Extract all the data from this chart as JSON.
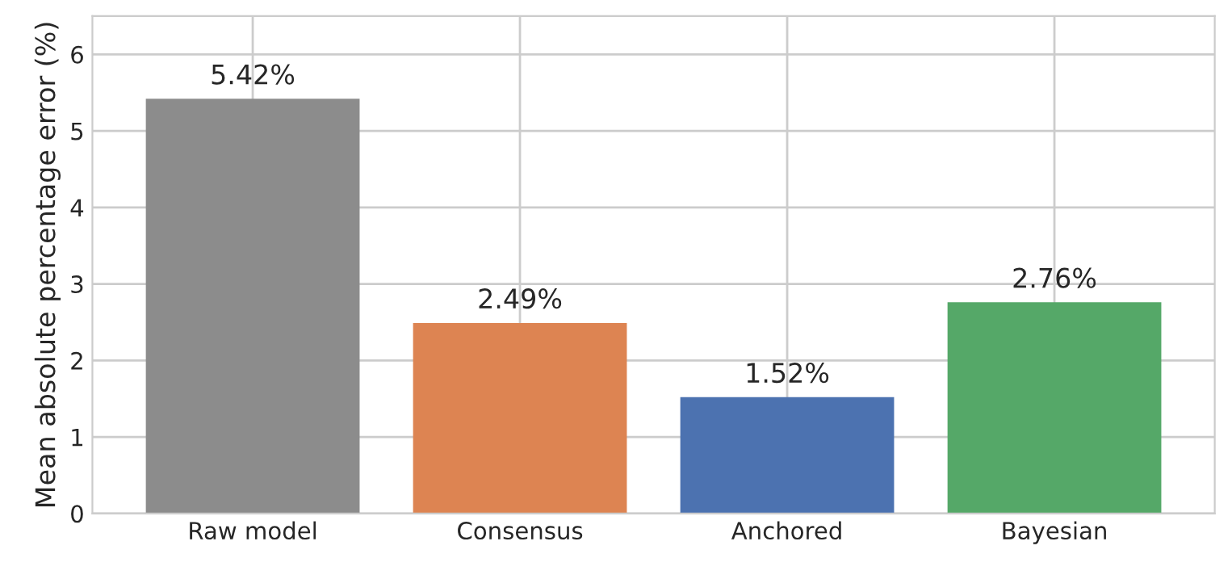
{
  "chart_data": {
    "type": "bar",
    "categories": [
      "Raw model",
      "Consensus",
      "Anchored",
      "Bayesian"
    ],
    "values": [
      5.42,
      2.49,
      1.52,
      2.76
    ],
    "colors": [
      "#8c8c8c",
      "#dd8452",
      "#4c72b0",
      "#55a868"
    ],
    "value_labels": [
      "5.42%",
      "2.49%",
      "1.52%",
      "2.76%"
    ],
    "ylabel": "Mean absolute percentage error (%)",
    "ylim": [
      0,
      6.5
    ],
    "yticks": [
      0,
      1,
      2,
      3,
      4,
      5,
      6
    ],
    "grid": true,
    "legend": false
  }
}
